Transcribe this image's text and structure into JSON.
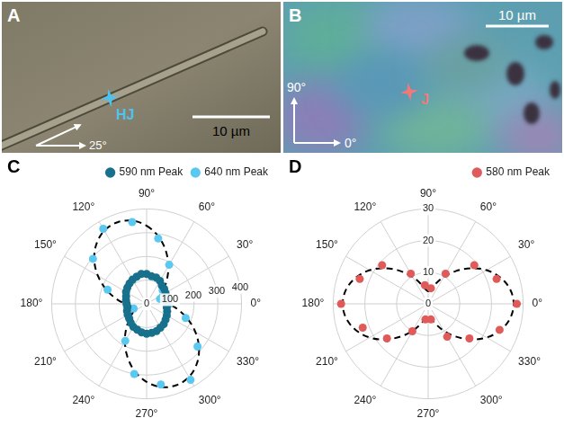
{
  "images": [
    {
      "panel_label": "A",
      "marker_label": "HJ",
      "color": "#4fc3f0",
      "scale_bar": "10 µm",
      "angle_label": "25°"
    },
    {
      "panel_label": "B",
      "marker_label": "J",
      "color": "#f07a7a",
      "scale_bar": "10 µm",
      "axis_labels": [
        "90°",
        "0°"
      ]
    }
  ],
  "chart_data": [
    {
      "type": "polar",
      "panel_label": "C",
      "categories": [
        "0°",
        null,
        null,
        "30°",
        null,
        null,
        "60°",
        null,
        null,
        "90°",
        null,
        null,
        "120°",
        null,
        null,
        "150°",
        null,
        null,
        "180°",
        null,
        null,
        "210°",
        null,
        null,
        "240°",
        null,
        null,
        "270°",
        null,
        null,
        "300°",
        null,
        null,
        "330°",
        null,
        null
      ],
      "ylim": [
        0,
        400
      ],
      "yticks": [
        0,
        100,
        200,
        300,
        400
      ],
      "grid": true,
      "legend": "top-right",
      "series": [
        {
          "name": "590 nm Peak",
          "color": "#17708c",
          "marker": "circle",
          "line_style": "none",
          "values": [
            88,
            82,
            90,
            92,
            97,
            100,
            112,
            118,
            118,
            126,
            128,
            122,
            118,
            112,
            106,
            100,
            92,
            88,
            84,
            82,
            88,
            92,
            96,
            104,
            112,
            116,
            122,
            126,
            124,
            122,
            116,
            112,
            104,
            98,
            92,
            86
          ]
        },
        {
          "name": "640 nm Peak",
          "color": "#5ac8f0",
          "marker": "circle",
          "line_style": "none",
          "values": [
            95,
            null,
            60,
            null,
            88,
            null,
            190,
            null,
            280,
            null,
            350,
            null,
            365,
            null,
            295,
            null,
            175,
            null,
            85,
            null,
            58,
            null,
            95,
            null,
            180,
            null,
            300,
            null,
            345,
            null,
            370,
            null,
            280,
            null,
            175,
            null
          ]
        },
        {
          "color": "#000000",
          "marker": "none",
          "line_style": "dashed",
          "values": [
            91,
            64,
            55,
            64,
            91,
            133,
            183,
            237,
            288,
            329,
            356,
            365,
            356,
            329,
            288,
            237,
            183,
            133,
            91,
            64,
            55,
            64,
            91,
            133,
            183,
            237,
            288,
            329,
            356,
            365,
            356,
            329,
            288,
            237,
            183,
            133
          ]
        },
        {
          "color": "#000000",
          "marker": "none",
          "line_style": "dashed",
          "values": [
            86,
            85,
            86,
            90,
            95,
            102,
            109,
            115,
            120,
            124,
            125,
            124,
            120,
            115,
            109,
            102,
            95,
            90,
            86,
            85,
            86,
            90,
            95,
            102,
            109,
            115,
            120,
            124,
            125,
            124,
            120,
            115,
            109,
            102,
            95,
            90
          ]
        }
      ]
    },
    {
      "type": "polar",
      "panel_label": "D",
      "categories": [
        "0°",
        null,
        null,
        "30°",
        null,
        null,
        "60°",
        null,
        null,
        "90°",
        null,
        null,
        "120°",
        null,
        null,
        "150°",
        null,
        null,
        "180°",
        null,
        null,
        "210°",
        null,
        null,
        "240°",
        null,
        null,
        "270°",
        null,
        null,
        "300°",
        null,
        null,
        "330°",
        null,
        null
      ],
      "ylim": [
        0,
        30
      ],
      "yticks": [
        0,
        10,
        20,
        30
      ],
      "grid": true,
      "legend": "top-right",
      "series": [
        {
          "name": "580 nm Peak",
          "color": "#e05a5a",
          "marker": "circle",
          "line_style": "none",
          "values": [
            28,
            null,
            23,
            null,
            19,
            null,
            11,
            null,
            5,
            null,
            6,
            null,
            11,
            null,
            19,
            null,
            23,
            null,
            27.5,
            null,
            22,
            null,
            17,
            null,
            10,
            null,
            5,
            null,
            5,
            null,
            12,
            null,
            17,
            null,
            24,
            null
          ]
        },
        {
          "color": "#000000",
          "marker": "none",
          "line_style": "dashed",
          "values": [
            27,
            26.3,
            24.3,
            21.3,
            17.5,
            13.5,
            9.8,
            6.7,
            4.7,
            4,
            4.7,
            6.7,
            9.8,
            13.5,
            17.5,
            21.3,
            24.3,
            26.3,
            27,
            26.3,
            24.3,
            21.3,
            17.5,
            13.5,
            9.8,
            6.7,
            4.7,
            4,
            4.7,
            6.7,
            9.8,
            13.5,
            17.5,
            21.3,
            24.3,
            26.3
          ]
        }
      ]
    }
  ]
}
